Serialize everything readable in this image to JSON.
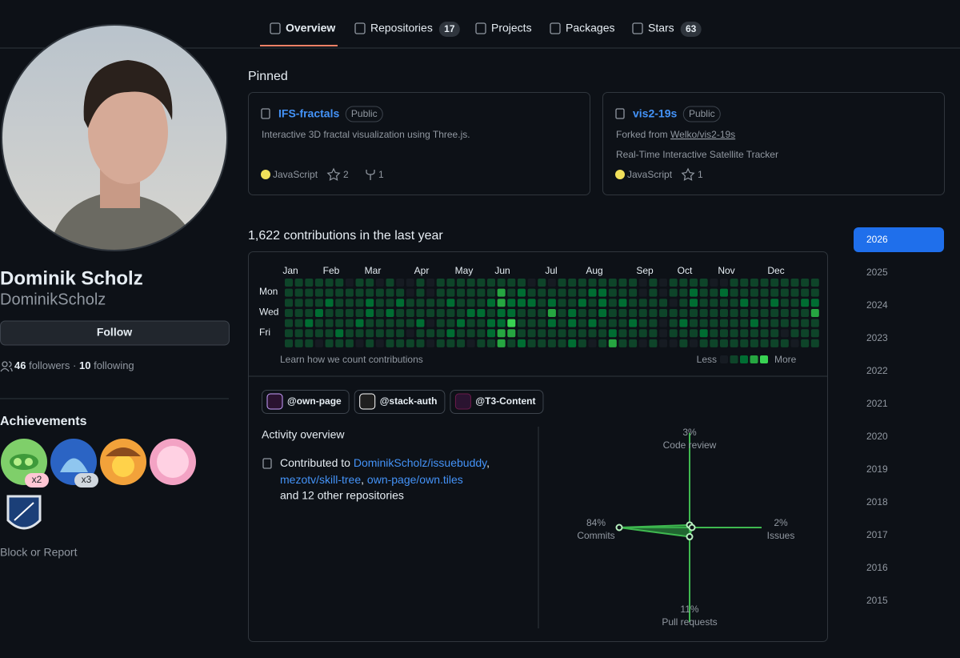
{
  "nav": {
    "tabs": [
      {
        "label": "Overview"
      },
      {
        "label": "Repositories",
        "count": 17
      },
      {
        "label": "Projects"
      },
      {
        "label": "Packages"
      },
      {
        "label": "Stars",
        "count": 63
      }
    ]
  },
  "profile": {
    "name": "Dominik Scholz",
    "username": "DominikScholz",
    "follow_button": "Follow",
    "followers": 46,
    "followers_label": "followers",
    "separator": "·",
    "following": 10,
    "following_label": "following",
    "achievements_title": "Achievements",
    "badge_multipliers": [
      "x2",
      "x3"
    ],
    "block_report": "Block or Report"
  },
  "pinned": {
    "title": "Pinned",
    "repos": [
      {
        "name": "IFS-fractals",
        "visibility": "Public",
        "description": "Interactive 3D fractal visualization using Three.js.",
        "language": "JavaScript",
        "stars": 2,
        "forks": 1
      },
      {
        "name": "vis2-19s",
        "visibility": "Public",
        "forked_prefix": "Forked from",
        "forked_from": "Welko/vis2-19s",
        "description": "Real-Time Interactive Satellite Tracker",
        "language": "JavaScript",
        "stars": 1
      }
    ]
  },
  "contributions": {
    "heading": "1,622 contributions in the last year",
    "months": [
      "Jan",
      "Feb",
      "Mar",
      "Apr",
      "May",
      "Jun",
      "Jul",
      "Aug",
      "Sep",
      "Oct",
      "Nov",
      "Dec"
    ],
    "days": [
      "Mon",
      "Wed",
      "Fri"
    ],
    "levels": [
      [
        1,
        1,
        1,
        1,
        1,
        1,
        1
      ],
      [
        1,
        1,
        1,
        1,
        1,
        1,
        1
      ],
      [
        1,
        1,
        1,
        1,
        2,
        1,
        1
      ],
      [
        1,
        1,
        1,
        2,
        1,
        1,
        0
      ],
      [
        1,
        1,
        2,
        1,
        1,
        1,
        1
      ],
      [
        1,
        1,
        1,
        1,
        1,
        2,
        1
      ],
      [
        0,
        1,
        1,
        1,
        1,
        1,
        1
      ],
      [
        1,
        1,
        1,
        1,
        2,
        1,
        0
      ],
      [
        1,
        1,
        2,
        2,
        1,
        1,
        1
      ],
      [
        0,
        1,
        1,
        1,
        1,
        1,
        0
      ],
      [
        1,
        1,
        1,
        2,
        1,
        1,
        1
      ],
      [
        0,
        1,
        2,
        1,
        1,
        1,
        1
      ],
      [
        0,
        0,
        1,
        1,
        1,
        0,
        1
      ],
      [
        1,
        1,
        1,
        1,
        2,
        1,
        1
      ],
      [
        0,
        0,
        1,
        1,
        0,
        1,
        0
      ],
      [
        1,
        1,
        1,
        1,
        1,
        1,
        1
      ],
      [
        1,
        1,
        2,
        1,
        1,
        2,
        1
      ],
      [
        1,
        1,
        1,
        1,
        2,
        1,
        1
      ],
      [
        1,
        1,
        1,
        2,
        1,
        1,
        0
      ],
      [
        1,
        1,
        1,
        2,
        1,
        1,
        1
      ],
      [
        1,
        1,
        2,
        1,
        2,
        2,
        1
      ],
      [
        1,
        3,
        3,
        2,
        2,
        3,
        3
      ],
      [
        1,
        1,
        2,
        2,
        4,
        3,
        1
      ],
      [
        1,
        2,
        2,
        1,
        1,
        1,
        2
      ],
      [
        0,
        1,
        2,
        1,
        1,
        1,
        1
      ],
      [
        1,
        1,
        1,
        1,
        1,
        1,
        1
      ],
      [
        0,
        1,
        2,
        3,
        2,
        1,
        1
      ],
      [
        1,
        1,
        1,
        1,
        1,
        1,
        1
      ],
      [
        1,
        1,
        1,
        2,
        2,
        1,
        2
      ],
      [
        1,
        1,
        2,
        1,
        1,
        1,
        1
      ],
      [
        1,
        2,
        1,
        1,
        2,
        1,
        0
      ],
      [
        1,
        2,
        2,
        2,
        1,
        1,
        1
      ],
      [
        1,
        1,
        1,
        1,
        1,
        2,
        3
      ],
      [
        1,
        1,
        2,
        1,
        1,
        1,
        1
      ],
      [
        1,
        1,
        1,
        1,
        2,
        1,
        1
      ],
      [
        0,
        0,
        1,
        1,
        1,
        1,
        0
      ],
      [
        1,
        1,
        1,
        1,
        1,
        1,
        1
      ],
      [
        0,
        0,
        1,
        1,
        0,
        0,
        0
      ],
      [
        1,
        1,
        0,
        1,
        1,
        1,
        0
      ],
      [
        1,
        1,
        1,
        1,
        2,
        1,
        1
      ],
      [
        1,
        2,
        2,
        1,
        1,
        1,
        0
      ],
      [
        1,
        1,
        1,
        1,
        1,
        2,
        1
      ],
      [
        0,
        1,
        1,
        1,
        1,
        1,
        1
      ],
      [
        0,
        2,
        1,
        1,
        1,
        1,
        1
      ],
      [
        1,
        1,
        1,
        1,
        1,
        1,
        1
      ],
      [
        1,
        1,
        2,
        1,
        1,
        1,
        1
      ],
      [
        1,
        1,
        1,
        1,
        2,
        1,
        1
      ],
      [
        1,
        1,
        1,
        1,
        1,
        1,
        1
      ],
      [
        1,
        1,
        2,
        1,
        1,
        1,
        1
      ],
      [
        1,
        1,
        1,
        1,
        1,
        0,
        1
      ],
      [
        1,
        1,
        1,
        1,
        1,
        1,
        0
      ],
      [
        1,
        1,
        2,
        1,
        1,
        1,
        1
      ],
      [
        1,
        1,
        2,
        3,
        1,
        1,
        1
      ]
    ],
    "learn": "Learn how we count contributions",
    "less": "Less",
    "more": "More",
    "legend_levels": [
      0,
      1,
      2,
      3,
      4
    ]
  },
  "organizations": [
    "@own-page",
    "@stack-auth",
    "@T3-Content"
  ],
  "activity": {
    "title": "Activity overview",
    "contributed_prefix": "Contributed to",
    "separator": ",",
    "repos": [
      "DominikScholz/issuebuddy",
      "mezotv/skill-tree",
      "own-page/own.tiles"
    ],
    "suffix": "and 12 other repositories",
    "axes": [
      {
        "label": "Code review",
        "value": 3,
        "value_label": "3%"
      },
      {
        "label": "Issues",
        "value": 2,
        "value_label": "2%"
      },
      {
        "label": "Pull requests",
        "value": 11,
        "value_label": "11%"
      },
      {
        "label": "Commits",
        "value": 84,
        "value_label": "84%"
      }
    ]
  },
  "years": [
    "2026",
    "2025",
    "2024",
    "2023",
    "2022",
    "2021",
    "2020",
    "2019",
    "2018",
    "2017",
    "2016",
    "2015"
  ]
}
